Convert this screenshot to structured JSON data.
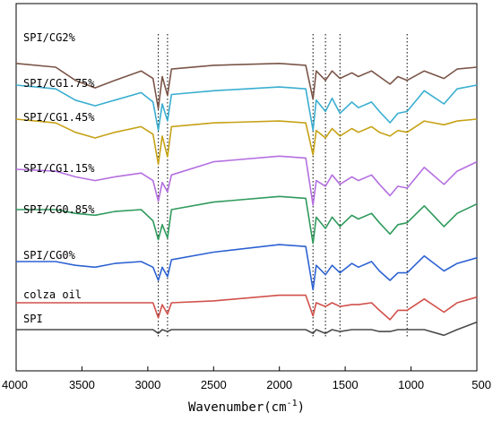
{
  "chart_data": {
    "type": "line",
    "title": "",
    "xlabel": "Wavenumber (cm⁻¹)",
    "ylabel": "",
    "xlim": [
      4000,
      500
    ],
    "x_reversed": true,
    "xticks": [
      4000,
      3500,
      3000,
      2500,
      2000,
      1500,
      1000,
      500
    ],
    "grid": false,
    "legend": "none (series labelled on the left edge)",
    "reference_lines": {
      "style": "dotted vertical",
      "x": [
        2920,
        2850,
        1745,
        1650,
        1540,
        1030
      ]
    },
    "series": [
      {
        "name": "SPI/CG2%",
        "color": "#7a5548",
        "points": [
          [
            4000,
            0.04
          ],
          [
            3700,
            0.05
          ],
          [
            3550,
            0.085
          ],
          [
            3400,
            0.105
          ],
          [
            3250,
            0.085
          ],
          [
            3050,
            0.06
          ],
          [
            2960,
            0.08
          ],
          [
            2920,
            0.16
          ],
          [
            2890,
            0.075
          ],
          [
            2850,
            0.125
          ],
          [
            2820,
            0.055
          ],
          [
            2500,
            0.045
          ],
          [
            2000,
            0.04
          ],
          [
            1800,
            0.045
          ],
          [
            1745,
            0.135
          ],
          [
            1720,
            0.06
          ],
          [
            1650,
            0.085
          ],
          [
            1600,
            0.06
          ],
          [
            1540,
            0.08
          ],
          [
            1450,
            0.065
          ],
          [
            1400,
            0.075
          ],
          [
            1300,
            0.06
          ],
          [
            1240,
            0.075
          ],
          [
            1160,
            0.095
          ],
          [
            1100,
            0.075
          ],
          [
            1030,
            0.085
          ],
          [
            900,
            0.06
          ],
          [
            750,
            0.08
          ],
          [
            650,
            0.055
          ],
          [
            500,
            0.05
          ]
        ]
      },
      {
        "name": "SPI/CG1.75%",
        "color": "#3aaed0",
        "points": [
          [
            4000,
            0.0
          ],
          [
            3700,
            0.01
          ],
          [
            3550,
            0.04
          ],
          [
            3400,
            0.055
          ],
          [
            3250,
            0.04
          ],
          [
            3050,
            0.02
          ],
          [
            2960,
            0.045
          ],
          [
            2920,
            0.12
          ],
          [
            2890,
            0.05
          ],
          [
            2850,
            0.095
          ],
          [
            2820,
            0.025
          ],
          [
            2500,
            0.015
          ],
          [
            2000,
            0.005
          ],
          [
            1800,
            0.01
          ],
          [
            1745,
            0.12
          ],
          [
            1720,
            0.04
          ],
          [
            1650,
            0.07
          ],
          [
            1600,
            0.035
          ],
          [
            1540,
            0.075
          ],
          [
            1450,
            0.045
          ],
          [
            1400,
            0.06
          ],
          [
            1300,
            0.045
          ],
          [
            1240,
            0.07
          ],
          [
            1160,
            0.1
          ],
          [
            1100,
            0.075
          ],
          [
            1030,
            0.07
          ],
          [
            900,
            0.015
          ],
          [
            750,
            0.05
          ],
          [
            650,
            0.01
          ],
          [
            500,
            0.0
          ]
        ]
      },
      {
        "name": "SPI/CG1.45%",
        "color": "#c6a216",
        "points": [
          [
            4000,
            0.0
          ],
          [
            3700,
            0.01
          ],
          [
            3550,
            0.035
          ],
          [
            3400,
            0.05
          ],
          [
            3250,
            0.035
          ],
          [
            3050,
            0.02
          ],
          [
            2960,
            0.04
          ],
          [
            2920,
            0.12
          ],
          [
            2890,
            0.045
          ],
          [
            2850,
            0.1
          ],
          [
            2820,
            0.02
          ],
          [
            2500,
            0.01
          ],
          [
            2000,
            0.005
          ],
          [
            1800,
            0.01
          ],
          [
            1745,
            0.095
          ],
          [
            1720,
            0.03
          ],
          [
            1650,
            0.05
          ],
          [
            1600,
            0.025
          ],
          [
            1540,
            0.045
          ],
          [
            1450,
            0.025
          ],
          [
            1400,
            0.035
          ],
          [
            1300,
            0.02
          ],
          [
            1240,
            0.035
          ],
          [
            1160,
            0.045
          ],
          [
            1100,
            0.03
          ],
          [
            1030,
            0.035
          ],
          [
            900,
            0.005
          ],
          [
            750,
            0.015
          ],
          [
            650,
            0.005
          ],
          [
            500,
            0.0
          ]
        ]
      },
      {
        "name": "SPI/CG1.15%",
        "color": "#b46fe0",
        "points": [
          [
            4000,
            0.0
          ],
          [
            3700,
            0.005
          ],
          [
            3550,
            0.02
          ],
          [
            3400,
            0.03
          ],
          [
            3250,
            0.02
          ],
          [
            3050,
            0.01
          ],
          [
            2960,
            0.03
          ],
          [
            2920,
            0.085
          ],
          [
            2890,
            0.035
          ],
          [
            2850,
            0.06
          ],
          [
            2820,
            0.015
          ],
          [
            2500,
            -0.02
          ],
          [
            2000,
            -0.035
          ],
          [
            1800,
            -0.03
          ],
          [
            1745,
            0.095
          ],
          [
            1720,
            0.03
          ],
          [
            1650,
            0.045
          ],
          [
            1600,
            0.015
          ],
          [
            1540,
            0.04
          ],
          [
            1450,
            0.02
          ],
          [
            1400,
            0.03
          ],
          [
            1300,
            0.015
          ],
          [
            1240,
            0.04
          ],
          [
            1160,
            0.07
          ],
          [
            1100,
            0.045
          ],
          [
            1030,
            0.05
          ],
          [
            900,
            -0.005
          ],
          [
            750,
            0.04
          ],
          [
            650,
            0.005
          ],
          [
            500,
            -0.02
          ]
        ]
      },
      {
        "name": "SPI/CG0.85%",
        "color": "#2f9a5c",
        "points": [
          [
            4000,
            0.0
          ],
          [
            3700,
            0.0
          ],
          [
            3550,
            0.01
          ],
          [
            3400,
            0.015
          ],
          [
            3250,
            0.005
          ],
          [
            3050,
            0.0
          ],
          [
            2960,
            0.03
          ],
          [
            2920,
            0.08
          ],
          [
            2890,
            0.04
          ],
          [
            2850,
            0.075
          ],
          [
            2820,
            0.0
          ],
          [
            2500,
            -0.02
          ],
          [
            2000,
            -0.035
          ],
          [
            1800,
            -0.03
          ],
          [
            1745,
            0.09
          ],
          [
            1720,
            0.02
          ],
          [
            1650,
            0.05
          ],
          [
            1600,
            0.02
          ],
          [
            1540,
            0.045
          ],
          [
            1450,
            0.015
          ],
          [
            1400,
            0.025
          ],
          [
            1300,
            0.01
          ],
          [
            1240,
            0.035
          ],
          [
            1160,
            0.065
          ],
          [
            1100,
            0.04
          ],
          [
            1030,
            0.035
          ],
          [
            900,
            -0.01
          ],
          [
            750,
            0.045
          ],
          [
            650,
            0.01
          ],
          [
            500,
            -0.015
          ]
        ]
      },
      {
        "name": "SPI/CG0%",
        "color": "#2d62d2",
        "points": [
          [
            4000,
            0.0
          ],
          [
            3700,
            0.0
          ],
          [
            3550,
            0.01
          ],
          [
            3400,
            0.015
          ],
          [
            3250,
            0.005
          ],
          [
            3050,
            0.0
          ],
          [
            2960,
            0.015
          ],
          [
            2920,
            0.05
          ],
          [
            2890,
            0.015
          ],
          [
            2850,
            0.04
          ],
          [
            2820,
            -0.005
          ],
          [
            2500,
            -0.025
          ],
          [
            2000,
            -0.045
          ],
          [
            1800,
            -0.04
          ],
          [
            1745,
            0.075
          ],
          [
            1720,
            0.01
          ],
          [
            1650,
            0.035
          ],
          [
            1600,
            0.01
          ],
          [
            1540,
            0.03
          ],
          [
            1450,
            0.005
          ],
          [
            1400,
            0.015
          ],
          [
            1300,
            0.0
          ],
          [
            1240,
            0.025
          ],
          [
            1160,
            0.05
          ],
          [
            1100,
            0.03
          ],
          [
            1030,
            0.03
          ],
          [
            900,
            -0.015
          ],
          [
            750,
            0.025
          ],
          [
            650,
            0.005
          ],
          [
            500,
            -0.01
          ]
        ]
      },
      {
        "name": "colza oil",
        "color": "#d1504a",
        "points": [
          [
            4000,
            0.0
          ],
          [
            3700,
            0.0
          ],
          [
            3550,
            0.0
          ],
          [
            3400,
            0.0
          ],
          [
            3250,
            0.0
          ],
          [
            3050,
            0.0
          ],
          [
            2960,
            0.0
          ],
          [
            2920,
            0.04
          ],
          [
            2890,
            0.005
          ],
          [
            2850,
            0.03
          ],
          [
            2820,
            0.0
          ],
          [
            2500,
            -0.005
          ],
          [
            2000,
            -0.02
          ],
          [
            1800,
            -0.02
          ],
          [
            1745,
            0.035
          ],
          [
            1720,
            0.0
          ],
          [
            1650,
            0.01
          ],
          [
            1600,
            0.0
          ],
          [
            1540,
            0.01
          ],
          [
            1450,
            0.005
          ],
          [
            1400,
            0.005
          ],
          [
            1300,
            0.0
          ],
          [
            1240,
            0.02
          ],
          [
            1160,
            0.045
          ],
          [
            1100,
            0.02
          ],
          [
            1030,
            0.02
          ],
          [
            900,
            -0.01
          ],
          [
            750,
            0.025
          ],
          [
            650,
            0.0
          ],
          [
            500,
            -0.015
          ]
        ]
      },
      {
        "name": "SPI",
        "color": "#4a4a4a",
        "points": [
          [
            4000,
            0.0
          ],
          [
            3700,
            0.0
          ],
          [
            3550,
            0.0
          ],
          [
            3400,
            0.0
          ],
          [
            3250,
            0.0
          ],
          [
            3050,
            0.0
          ],
          [
            2960,
            0.0
          ],
          [
            2920,
            0.01
          ],
          [
            2890,
            0.0
          ],
          [
            2850,
            0.005
          ],
          [
            2820,
            0.0
          ],
          [
            2500,
            0.0
          ],
          [
            2000,
            0.0
          ],
          [
            1800,
            0.0
          ],
          [
            1745,
            0.01
          ],
          [
            1720,
            0.0
          ],
          [
            1650,
            0.01
          ],
          [
            1600,
            0.0
          ],
          [
            1540,
            0.005
          ],
          [
            1450,
            0.0
          ],
          [
            1400,
            0.0
          ],
          [
            1300,
            0.0
          ],
          [
            1240,
            0.005
          ],
          [
            1160,
            0.005
          ],
          [
            1100,
            0.0
          ],
          [
            1030,
            0.0
          ],
          [
            900,
            0.0
          ],
          [
            750,
            0.015
          ],
          [
            650,
            0.0
          ],
          [
            500,
            -0.02
          ]
        ]
      }
    ]
  },
  "axis": {
    "xlabel_text": "Wavenumber(cm",
    "xlabel_sup": "-1",
    "xlabel_close": ")"
  }
}
